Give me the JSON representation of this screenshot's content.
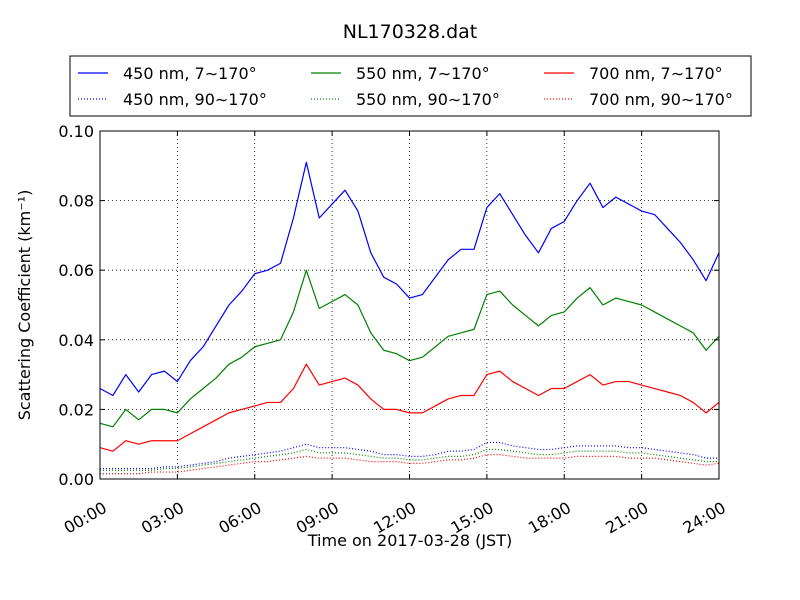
{
  "chart_data": {
    "type": "line",
    "title": "NL170328.dat",
    "xlabel": "Time on 2017-03-28 (JST)",
    "ylabel": "Scattering Coefficient (km⁻¹)",
    "xlim_hours": [
      0,
      24
    ],
    "ylim": [
      0.0,
      0.1
    ],
    "x_tick_labels": [
      "00:00",
      "03:00",
      "06:00",
      "09:00",
      "12:00",
      "15:00",
      "18:00",
      "21:00",
      "24:00"
    ],
    "y_tick_labels": [
      "0.00",
      "0.02",
      "0.04",
      "0.06",
      "0.08",
      "0.10"
    ],
    "grid": true,
    "legend": {
      "placement": "top, above plot",
      "columns": 3
    },
    "x_hours": [
      0,
      0.5,
      1,
      1.5,
      2,
      2.5,
      3,
      3.5,
      4,
      4.5,
      5,
      5.5,
      6,
      6.5,
      7,
      7.5,
      8,
      8.5,
      9,
      9.5,
      10,
      10.5,
      11,
      11.5,
      12,
      12.5,
      13,
      13.5,
      14,
      14.5,
      15,
      15.5,
      16,
      16.5,
      17,
      17.5,
      18,
      18.5,
      19,
      19.5,
      20,
      20.5,
      21,
      21.5,
      22,
      22.5,
      23,
      23.5,
      24
    ],
    "series": [
      {
        "name": "450 nm, 7∼170°",
        "color": "#0000ff",
        "style": "solid",
        "values": [
          0.026,
          0.024,
          0.03,
          0.025,
          0.03,
          0.031,
          0.028,
          0.034,
          0.038,
          0.044,
          0.05,
          0.054,
          0.059,
          0.06,
          0.062,
          0.075,
          0.091,
          0.075,
          0.079,
          0.083,
          0.077,
          0.065,
          0.058,
          0.056,
          0.052,
          0.053,
          0.058,
          0.063,
          0.066,
          0.066,
          0.078,
          0.082,
          0.076,
          0.07,
          0.065,
          0.072,
          0.074,
          0.08,
          0.085,
          0.078,
          0.081,
          0.079,
          0.077,
          0.076,
          0.072,
          0.068,
          0.063,
          0.057,
          0.065
        ]
      },
      {
        "name": "450 nm, 90∼170°",
        "color": "#0000ff",
        "style": "dotted",
        "values": [
          0.003,
          0.003,
          0.003,
          0.003,
          0.003,
          0.0035,
          0.0035,
          0.004,
          0.0045,
          0.005,
          0.006,
          0.0065,
          0.007,
          0.0075,
          0.008,
          0.009,
          0.01,
          0.009,
          0.009,
          0.009,
          0.0085,
          0.008,
          0.007,
          0.007,
          0.0065,
          0.0065,
          0.007,
          0.008,
          0.008,
          0.0085,
          0.0105,
          0.0105,
          0.0095,
          0.009,
          0.0085,
          0.0085,
          0.009,
          0.0095,
          0.0095,
          0.0095,
          0.0095,
          0.009,
          0.009,
          0.0085,
          0.008,
          0.0075,
          0.007,
          0.006,
          0.006
        ]
      },
      {
        "name": "550 nm, 7∼170°",
        "color": "#008000",
        "style": "solid",
        "values": [
          0.016,
          0.015,
          0.02,
          0.017,
          0.02,
          0.02,
          0.019,
          0.023,
          0.026,
          0.029,
          0.033,
          0.035,
          0.038,
          0.039,
          0.04,
          0.048,
          0.06,
          0.049,
          0.051,
          0.053,
          0.05,
          0.042,
          0.037,
          0.036,
          0.034,
          0.035,
          0.038,
          0.041,
          0.042,
          0.043,
          0.053,
          0.054,
          0.05,
          0.047,
          0.044,
          0.047,
          0.048,
          0.052,
          0.055,
          0.05,
          0.052,
          0.051,
          0.05,
          0.048,
          0.046,
          0.044,
          0.042,
          0.037,
          0.041
        ]
      },
      {
        "name": "550 nm, 90∼170°",
        "color": "#008000",
        "style": "dotted",
        "values": [
          0.0025,
          0.0025,
          0.0025,
          0.0025,
          0.0025,
          0.003,
          0.003,
          0.0035,
          0.004,
          0.0045,
          0.005,
          0.0055,
          0.006,
          0.0065,
          0.007,
          0.0075,
          0.0085,
          0.0075,
          0.0075,
          0.0075,
          0.007,
          0.0065,
          0.006,
          0.006,
          0.0055,
          0.0055,
          0.006,
          0.0065,
          0.0065,
          0.007,
          0.0085,
          0.0085,
          0.008,
          0.0075,
          0.007,
          0.007,
          0.0075,
          0.008,
          0.008,
          0.008,
          0.008,
          0.0075,
          0.0075,
          0.007,
          0.0065,
          0.006,
          0.0055,
          0.005,
          0.005
        ]
      },
      {
        "name": "700 nm, 7∼170°",
        "color": "#ff0000",
        "style": "solid",
        "values": [
          0.009,
          0.008,
          0.011,
          0.01,
          0.011,
          0.011,
          0.011,
          0.013,
          0.015,
          0.017,
          0.019,
          0.02,
          0.021,
          0.022,
          0.022,
          0.026,
          0.033,
          0.027,
          0.028,
          0.029,
          0.027,
          0.023,
          0.02,
          0.02,
          0.019,
          0.019,
          0.021,
          0.023,
          0.024,
          0.024,
          0.03,
          0.031,
          0.028,
          0.026,
          0.024,
          0.026,
          0.026,
          0.028,
          0.03,
          0.027,
          0.028,
          0.028,
          0.027,
          0.026,
          0.025,
          0.024,
          0.022,
          0.019,
          0.022
        ]
      },
      {
        "name": "700 nm, 90∼170°",
        "color": "#ff0000",
        "style": "dotted",
        "values": [
          0.0015,
          0.0015,
          0.0015,
          0.0015,
          0.002,
          0.002,
          0.002,
          0.0025,
          0.003,
          0.0035,
          0.004,
          0.0045,
          0.005,
          0.005,
          0.0055,
          0.006,
          0.0065,
          0.006,
          0.006,
          0.006,
          0.0055,
          0.005,
          0.005,
          0.005,
          0.0045,
          0.0045,
          0.005,
          0.0055,
          0.0055,
          0.006,
          0.007,
          0.007,
          0.0065,
          0.006,
          0.006,
          0.006,
          0.006,
          0.0065,
          0.0065,
          0.0065,
          0.0065,
          0.006,
          0.006,
          0.006,
          0.0055,
          0.005,
          0.0045,
          0.004,
          0.0045
        ]
      }
    ]
  }
}
